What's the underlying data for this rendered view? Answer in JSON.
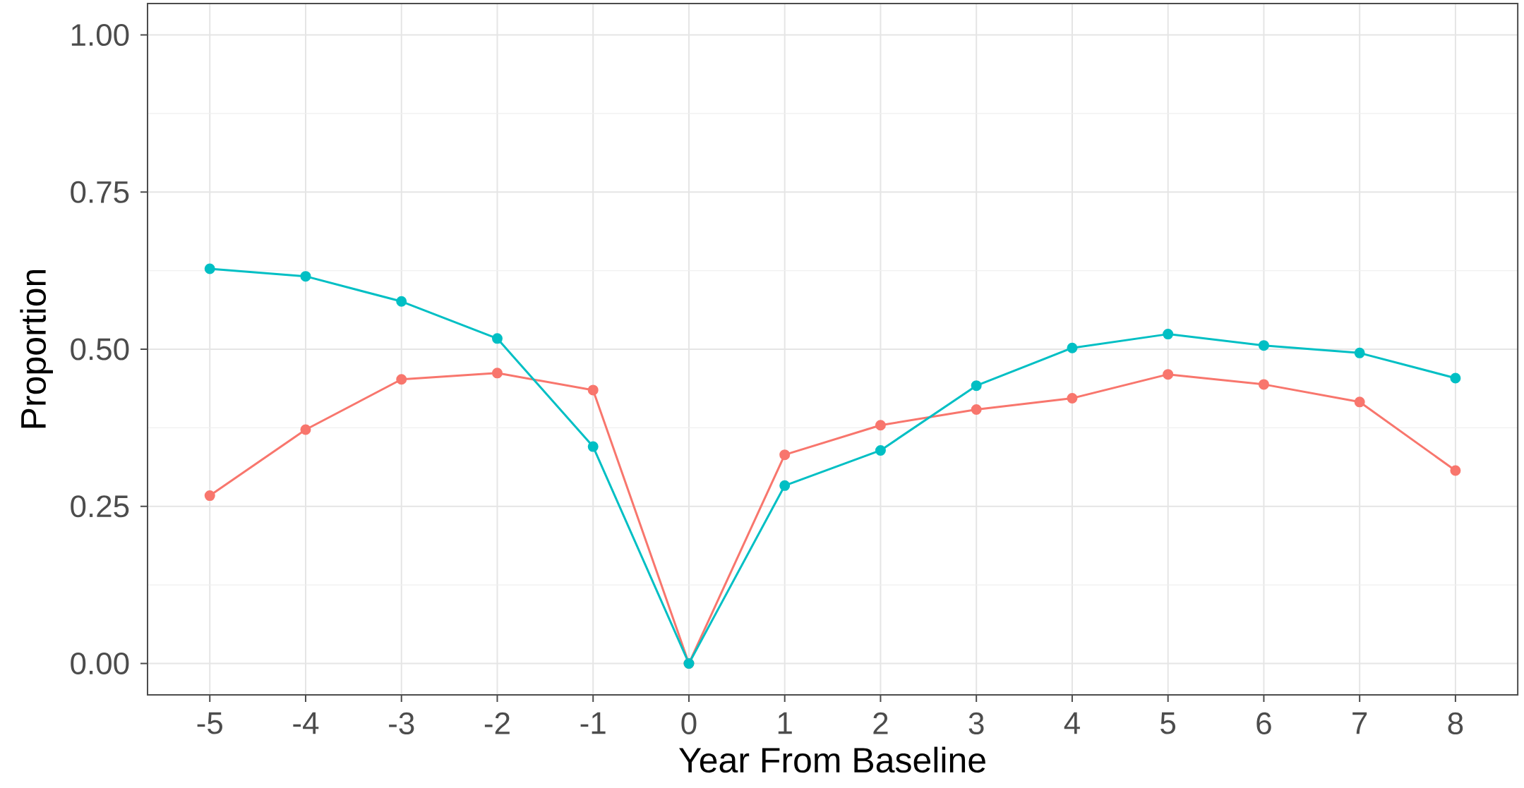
{
  "chart_data": {
    "type": "line",
    "xlabel": "Year From Baseline",
    "ylabel": "Proportion",
    "x": [
      -5,
      -4,
      -3,
      -2,
      -1,
      0,
      1,
      2,
      3,
      4,
      5,
      6,
      7,
      8
    ],
    "series": [
      {
        "color": "#f8766d",
        "values": [
          0.267,
          0.372,
          0.452,
          0.462,
          0.435,
          0,
          0.332,
          0.379,
          0.404,
          0.422,
          0.46,
          0.444,
          0.416,
          0.307
        ]
      },
      {
        "color": "#00bfc4",
        "values": [
          0.628,
          0.616,
          0.576,
          0.517,
          0.345,
          0,
          0.283,
          0.339,
          0.442,
          0.502,
          0.524,
          0.506,
          0.494,
          0.454
        ]
      }
    ],
    "xlim": [
      -5.65,
      8.65
    ],
    "ylim": [
      -0.05,
      1.05
    ],
    "xticks": [
      -5,
      -4,
      -3,
      -2,
      -1,
      0,
      1,
      2,
      3,
      4,
      5,
      6,
      7,
      8
    ],
    "yticks": [
      {
        "value": 0,
        "label": "0.00"
      },
      {
        "value": 0.25,
        "label": "0.25"
      },
      {
        "value": 0.5,
        "label": "0.50"
      },
      {
        "value": 0.75,
        "label": "0.75"
      },
      {
        "value": 1,
        "label": "1.00"
      }
    ],
    "grid": true,
    "marker": "circle",
    "line_style": "solid"
  }
}
